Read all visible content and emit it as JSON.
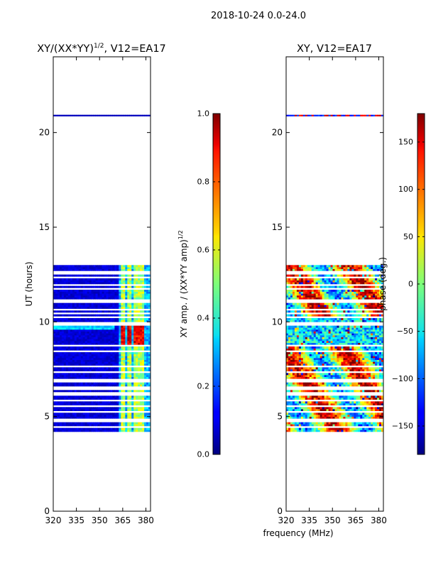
{
  "figure": {
    "suptitle": "2018-10-24 0.0-24.0",
    "shared_xlabel": "frequency (MHz)"
  },
  "colorbars": {
    "amp": {
      "label": "XY amp. / (XX*YY amp)",
      "label_sup": "1/2",
      "ticks": [
        "0.0",
        "0.2",
        "0.4",
        "0.6",
        "0.8",
        "1.0"
      ],
      "tick_values": [
        0.0,
        0.2,
        0.4,
        0.6,
        0.8,
        1.0
      ],
      "range": [
        0.0,
        1.0
      ],
      "colormap": "jet"
    },
    "phase": {
      "label": "phase (deg.)",
      "ticks": [
        "−150",
        "−100",
        "−50",
        "0",
        "50",
        "100",
        "150"
      ],
      "tick_values": [
        -150,
        -100,
        -50,
        0,
        50,
        100,
        150
      ],
      "range": [
        -180,
        180
      ],
      "colormap": "jet"
    }
  },
  "chart_data": [
    {
      "type": "heatmap",
      "title_prefix": "XY/(XX*YY)",
      "title_sup": "1/2",
      "title_suffix": ", V12=EA17",
      "ylabel": "UT (hours)",
      "xticks": [
        "320",
        "335",
        "350",
        "365",
        "380"
      ],
      "xtick_values": [
        320,
        335,
        350,
        365,
        380
      ],
      "yticks": [
        "0",
        "5",
        "10",
        "15",
        "20"
      ],
      "ytick_values": [
        0,
        5,
        10,
        15,
        20
      ],
      "xlim": [
        320,
        383
      ],
      "ylim": [
        0,
        24
      ],
      "data_time_range": [
        4.2,
        13.0
      ],
      "isolated_row_hours": 20.9,
      "high_value_channels": [
        365,
        369,
        373,
        377
      ],
      "high_value_time_range": [
        8.8,
        9.9
      ]
    },
    {
      "type": "heatmap",
      "title": "XY, V12=EA17",
      "xticks": [
        "320",
        "335",
        "350",
        "365",
        "380"
      ],
      "xtick_values": [
        320,
        335,
        350,
        365,
        380
      ],
      "yticks": [
        "0",
        "5",
        "10",
        "15",
        "20"
      ],
      "ytick_values": [
        0,
        5,
        10,
        15,
        20
      ],
      "xlim": [
        320,
        383
      ],
      "ylim": [
        0,
        24
      ],
      "data_time_range": [
        4.2,
        13.0
      ],
      "isolated_row_hours": 20.9
    }
  ]
}
